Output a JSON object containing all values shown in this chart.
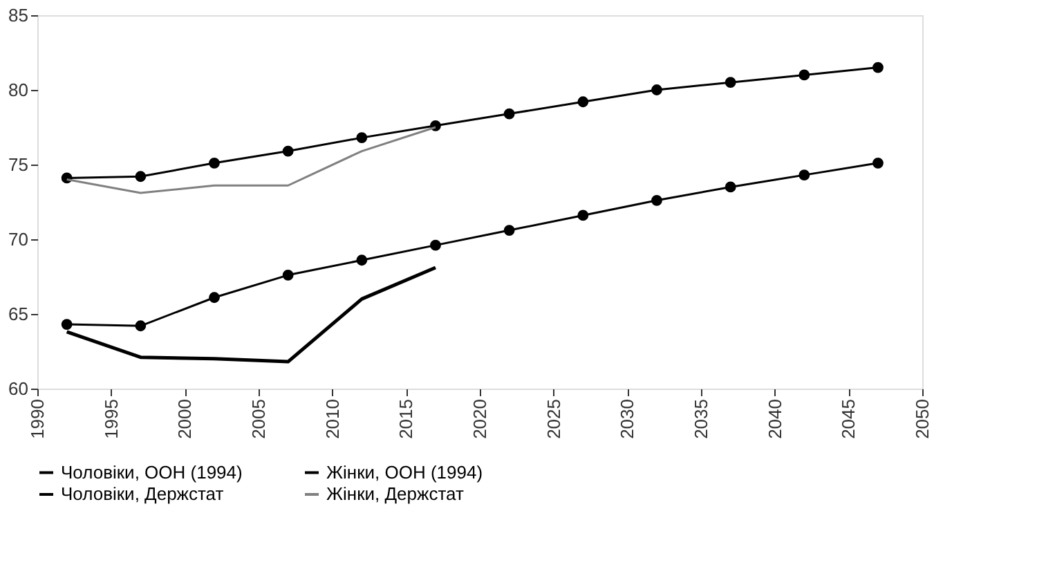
{
  "chart_data": {
    "type": "line",
    "x": [
      1992,
      1997,
      2002,
      2007,
      2012,
      2017,
      2022,
      2027,
      2032,
      2037,
      2042,
      2047
    ],
    "series": [
      {
        "name": "Чоловіки, ООН (1994)",
        "color": "#000000",
        "marker": "circle",
        "values": [
          64.3,
          64.2,
          66.1,
          67.6,
          68.6,
          69.6,
          70.6,
          71.6,
          72.6,
          73.5,
          74.3,
          75.1
        ]
      },
      {
        "name": "Жінки, ООН (1994)",
        "color": "#000000",
        "marker": "circle",
        "values": [
          74.1,
          74.2,
          75.1,
          75.9,
          76.8,
          77.6,
          78.4,
          79.2,
          80.0,
          80.5,
          81.0,
          81.5
        ]
      },
      {
        "name": "Чоловіки, Держстат",
        "color": "#000000",
        "marker": "none",
        "values": [
          63.8,
          62.1,
          62.0,
          61.8,
          66.0,
          68.1,
          null,
          null,
          null,
          null,
          null,
          null
        ]
      },
      {
        "name": "Жінки, Держстат",
        "color": "#808080",
        "marker": "none",
        "values": [
          74.0,
          73.1,
          73.6,
          73.6,
          75.9,
          77.5,
          null,
          null,
          null,
          null,
          null,
          null
        ]
      }
    ],
    "xlim": [
      1990,
      2050
    ],
    "xticks": [
      1990,
      1995,
      2000,
      2005,
      2010,
      2015,
      2020,
      2025,
      2030,
      2035,
      2040,
      2045,
      2050
    ],
    "ylim": [
      60,
      85
    ],
    "yticks": [
      60,
      65,
      70,
      75,
      80,
      85
    ],
    "grid": false,
    "legend": "bottom"
  }
}
